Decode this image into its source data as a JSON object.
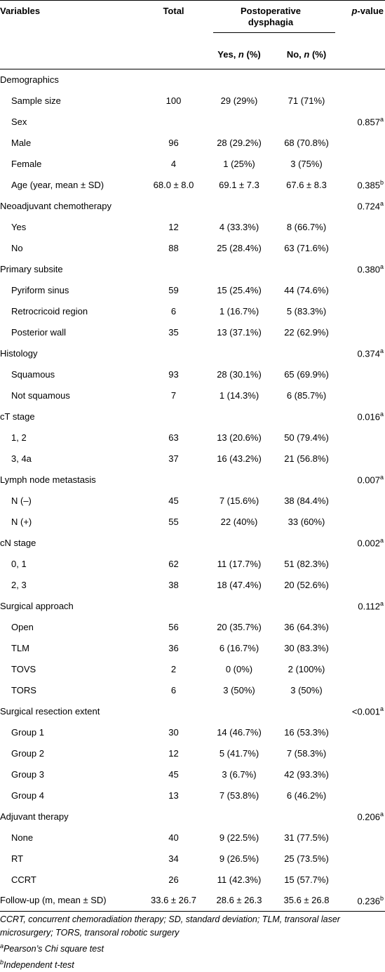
{
  "header": {
    "variables": "Variables",
    "total": "Total",
    "dysphagia": "Postoperative dysphagia",
    "yes": [
      "Yes, ",
      "n",
      " (%)"
    ],
    "no": [
      "No, ",
      "n",
      " (%)"
    ],
    "p_value": [
      "p",
      "-value"
    ]
  },
  "sections": [
    {
      "label": "Demographics",
      "rows": [
        {
          "label": "Sample size",
          "total": "100",
          "yes": "29 (29%)",
          "no": "71 (71%)"
        },
        {
          "label": "Sex",
          "p": "0.857",
          "p_mark": "a"
        },
        {
          "label": "Male",
          "total": "96",
          "yes": "28 (29.2%)",
          "no": "68 (70.8%)"
        },
        {
          "label": "Female",
          "total": "4",
          "yes": "1 (25%)",
          "no": "3 (75%)"
        },
        {
          "label": "Age (year, mean ± SD)",
          "total": "68.0 ± 8.0",
          "yes": "69.1 ± 7.3",
          "no": "67.6 ± 8.3",
          "p": "0.385",
          "p_mark": "b"
        }
      ]
    },
    {
      "label": "Neoadjuvant chemotherapy",
      "p": "0.724",
      "p_mark": "a",
      "rows": [
        {
          "label": "Yes",
          "total": "12",
          "yes": "4 (33.3%)",
          "no": "8 (66.7%)"
        },
        {
          "label": "No",
          "total": "88",
          "yes": "25 (28.4%)",
          "no": "63 (71.6%)"
        }
      ]
    },
    {
      "label": "Primary subsite",
      "p": "0.380",
      "p_mark": "a",
      "rows": [
        {
          "label": "Pyriform sinus",
          "total": "59",
          "yes": "15 (25.4%)",
          "no": "44 (74.6%)"
        },
        {
          "label": "Retrocricoid region",
          "total": "6",
          "yes": "1 (16.7%)",
          "no": "5 (83.3%)"
        },
        {
          "label": "Posterior wall",
          "total": "35",
          "yes": "13 (37.1%)",
          "no": "22 (62.9%)"
        }
      ]
    },
    {
      "label": "Histology",
      "p": "0.374",
      "p_mark": "a",
      "rows": [
        {
          "label": "Squamous",
          "total": "93",
          "yes": "28 (30.1%)",
          "no": "65 (69.9%)"
        },
        {
          "label": "Not squamous",
          "total": "7",
          "yes": "1 (14.3%)",
          "no": "6 (85.7%)"
        }
      ]
    },
    {
      "label": "cT stage",
      "p": "0.016",
      "p_mark": "a",
      "rows": [
        {
          "label": "1, 2",
          "total": "63",
          "yes": "13 (20.6%)",
          "no": "50 (79.4%)"
        },
        {
          "label": "3, 4a",
          "total": "37",
          "yes": "16 (43.2%)",
          "no": "21 (56.8%)"
        }
      ]
    },
    {
      "label": "Lymph node metastasis",
      "p": "0.007",
      "p_mark": "a",
      "rows": [
        {
          "label": "N (–)",
          "total": "45",
          "yes": "7 (15.6%)",
          "no": "38 (84.4%)"
        },
        {
          "label": "N (+)",
          "total": "55",
          "yes": "22 (40%)",
          "no": "33 (60%)"
        }
      ]
    },
    {
      "label": "cN stage",
      "p": "0.002",
      "p_mark": "a",
      "rows": [
        {
          "label": "0, 1",
          "total": "62",
          "yes": "11 (17.7%)",
          "no": "51 (82.3%)"
        },
        {
          "label": "2, 3",
          "total": "38",
          "yes": "18 (47.4%)",
          "no": "20 (52.6%)"
        }
      ]
    },
    {
      "label": "Surgical approach",
      "p": "0.112",
      "p_mark": "a",
      "rows": [
        {
          "label": "Open",
          "total": "56",
          "yes": "20 (35.7%)",
          "no": "36 (64.3%)"
        },
        {
          "label": "TLM",
          "total": "36",
          "yes": "6 (16.7%)",
          "no": "30 (83.3%)"
        },
        {
          "label": "TOVS",
          "total": "2",
          "yes": "0 (0%)",
          "no": "2 (100%)"
        },
        {
          "label": "TORS",
          "total": "6",
          "yes": "3 (50%)",
          "no": "3 (50%)"
        }
      ]
    },
    {
      "label": "Surgical resection extent",
      "p": "<0.001",
      "p_mark": "a",
      "rows": [
        {
          "label": "Group 1",
          "total": "30",
          "yes": "14 (46.7%)",
          "no": "16 (53.3%)"
        },
        {
          "label": "Group 2",
          "total": "12",
          "yes": "5 (41.7%)",
          "no": "7 (58.3%)"
        },
        {
          "label": "Group 3",
          "total": "45",
          "yes": "3 (6.7%)",
          "no": "42 (93.3%)"
        },
        {
          "label": "Group 4",
          "total": "13",
          "yes": "7 (53.8%)",
          "no": "6 (46.2%)"
        }
      ]
    },
    {
      "label": "Adjuvant therapy",
      "p": "0.206",
      "p_mark": "a",
      "rows": [
        {
          "label": "None",
          "total": "40",
          "yes": "9 (22.5%)",
          "no": "31 (77.5%)"
        },
        {
          "label": "RT",
          "total": "34",
          "yes": "9 (26.5%)",
          "no": "25 (73.5%)"
        },
        {
          "label": "CCRT",
          "total": "26",
          "yes": "11 (42.3%)",
          "no": "15 (57.7%)"
        }
      ]
    },
    {
      "label": "Follow-up (m, mean ± SD)",
      "total": "33.6 ± 26.7",
      "yes": "28.6 ± 26.3",
      "no": "35.6 ± 26.8",
      "p": "0.236",
      "p_mark": "b",
      "rows": []
    }
  ],
  "footnotes": {
    "abbreviations": "CCRT, concurrent chemoradiation therapy; SD, standard deviation; TLM, transoral laser microsurgery; TORS, transoral robotic surgery",
    "notes": [
      {
        "mark": "a",
        "text": "Pearson’s Chi square test"
      },
      {
        "mark": "b",
        "text": "Independent t-test"
      }
    ]
  }
}
